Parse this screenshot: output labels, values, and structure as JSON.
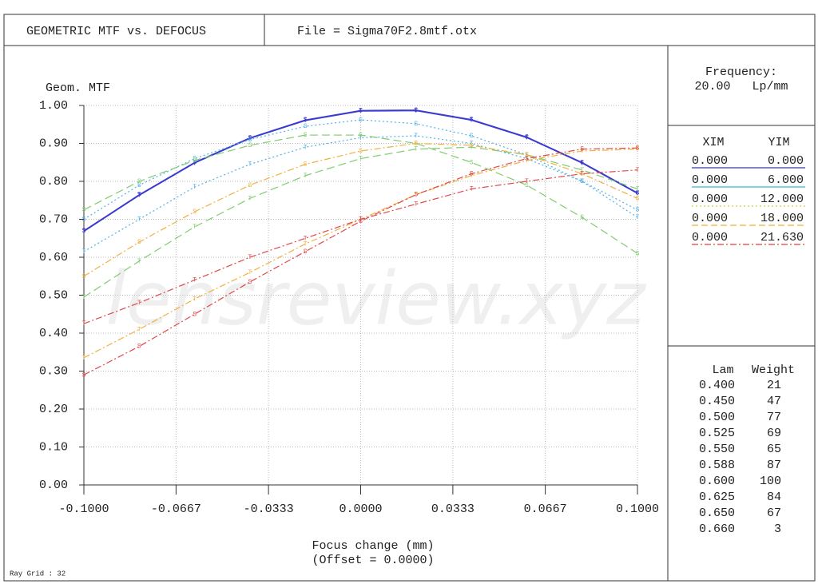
{
  "header": {
    "title": "GEOMETRIC MTF vs. DEFOCUS",
    "file": "File = Sigma70F2.8mtf.otx"
  },
  "chart_data": {
    "type": "line",
    "ylabel": "Geom. MTF",
    "xlabel": "Focus change (mm)",
    "xlabel2": "(Offset = 0.0000)",
    "watermark": "lensreview.xyz",
    "x": [
      -0.1,
      -0.08,
      -0.06,
      -0.04,
      -0.02,
      0,
      0.02,
      0.04,
      0.06,
      0.08,
      0.1
    ],
    "xlim": [
      -0.1,
      0.1
    ],
    "xticks": [
      {
        "value": -0.1,
        "label": "-0.1000"
      },
      {
        "value": -0.0667,
        "label": "-0.0667"
      },
      {
        "value": -0.0333,
        "label": "-0.0333"
      },
      {
        "value": 0,
        "label": "0.0000"
      },
      {
        "value": 0.0333,
        "label": "0.0333"
      },
      {
        "value": 0.0667,
        "label": "0.0667"
      },
      {
        "value": 0.1,
        "label": "0.1000"
      }
    ],
    "ylim": [
      0,
      1
    ],
    "yticks": [
      {
        "value": 0,
        "label": "0.00"
      },
      {
        "value": 0.1,
        "label": "0.10"
      },
      {
        "value": 0.2,
        "label": "0.20"
      },
      {
        "value": 0.3,
        "label": "0.30"
      },
      {
        "value": 0.4,
        "label": "0.40"
      },
      {
        "value": 0.5,
        "label": "0.50"
      },
      {
        "value": 0.6,
        "label": "0.60"
      },
      {
        "value": 0.7,
        "label": "0.70"
      },
      {
        "value": 0.8,
        "label": "0.80"
      },
      {
        "value": 0.9,
        "label": "0.90"
      },
      {
        "value": 1,
        "label": "1.00"
      }
    ],
    "grid": true,
    "series": [
      {
        "marker": "S",
        "color": "#3a3ad0",
        "dash": "none",
        "values": [
          0.67,
          0.765,
          0.85,
          0.915,
          0.962,
          0.987,
          0.988,
          0.963,
          0.917,
          0.85,
          0.77
        ]
      },
      {
        "marker": "T",
        "color": "#3a3ad0",
        "dash": "none",
        "values": [
          0.668,
          0.763,
          0.848,
          0.913,
          0.96,
          0.985,
          0.986,
          0.961,
          0.915,
          0.848,
          0.768
        ]
      },
      {
        "marker": "S",
        "color": "#50b0e8",
        "dash": "2 3",
        "values": [
          0.7,
          0.79,
          0.86,
          0.91,
          0.945,
          0.962,
          0.952,
          0.92,
          0.87,
          0.8,
          0.725
        ]
      },
      {
        "marker": "T",
        "color": "#50b0e8",
        "dash": "2 3",
        "values": [
          0.615,
          0.7,
          0.785,
          0.845,
          0.89,
          0.915,
          0.92,
          0.9,
          0.86,
          0.8,
          0.705
        ]
      },
      {
        "marker": "S",
        "color": "#80cc70",
        "dash": "10 5",
        "values": [
          0.725,
          0.8,
          0.855,
          0.895,
          0.922,
          0.922,
          0.9,
          0.85,
          0.79,
          0.705,
          0.61
        ]
      },
      {
        "marker": "T",
        "color": "#80cc70",
        "dash": "10 5",
        "values": [
          0.495,
          0.59,
          0.68,
          0.755,
          0.815,
          0.86,
          0.885,
          0.89,
          0.87,
          0.83,
          0.78
        ]
      },
      {
        "marker": "S",
        "color": "#f0b040",
        "dash": "8 3 2 3",
        "values": [
          0.55,
          0.64,
          0.72,
          0.79,
          0.845,
          0.88,
          0.9,
          0.895,
          0.87,
          0.82,
          0.755
        ]
      },
      {
        "marker": "T",
        "color": "#f0b040",
        "dash": "8 3 2 3",
        "values": [
          0.335,
          0.41,
          0.49,
          0.56,
          0.635,
          0.7,
          0.765,
          0.815,
          0.855,
          0.88,
          0.885
        ]
      },
      {
        "marker": "S",
        "color": "#e04848",
        "dash": "8 3 2 3",
        "values": [
          0.29,
          0.365,
          0.45,
          0.535,
          0.615,
          0.695,
          0.765,
          0.82,
          0.86,
          0.885,
          0.888
        ]
      },
      {
        "marker": "T",
        "color": "#e04848",
        "dash": "8 3 2 3",
        "values": [
          0.425,
          0.48,
          0.54,
          0.6,
          0.65,
          0.7,
          0.74,
          0.78,
          0.8,
          0.82,
          0.83
        ]
      }
    ]
  },
  "side": {
    "frequency_label": "Frequency:",
    "frequency": "20.00   Lp/mm",
    "field_headers": [
      "XIM",
      "YIM"
    ],
    "fields": [
      {
        "xim": "0.000",
        "yim": "0.000",
        "color": "#3333cc",
        "dash": "none"
      },
      {
        "xim": "0.000",
        "yim": "6.000",
        "color": "#33bbcc",
        "dash": "none"
      },
      {
        "xim": "0.000",
        "yim": "12.000",
        "color": "#cccc33",
        "dash": "2 3"
      },
      {
        "xim": "0.000",
        "yim": "18.000",
        "color": "#f0b030",
        "dash": "8 4"
      },
      {
        "xim": "0.000",
        "yim": "21.630",
        "color": "#e04040",
        "dash": "8 3 2 3"
      }
    ],
    "wave_headers": [
      "Lam",
      "Weight"
    ],
    "waves": [
      [
        "0.400",
        21
      ],
      [
        "0.450",
        47
      ],
      [
        "0.500",
        77
      ],
      [
        "0.525",
        69
      ],
      [
        "0.550",
        65
      ],
      [
        "0.588",
        87
      ],
      [
        "0.600",
        100
      ],
      [
        "0.625",
        84
      ],
      [
        "0.650",
        67
      ],
      [
        "0.660",
        3
      ]
    ]
  },
  "footer": "Ray Grid : 32"
}
